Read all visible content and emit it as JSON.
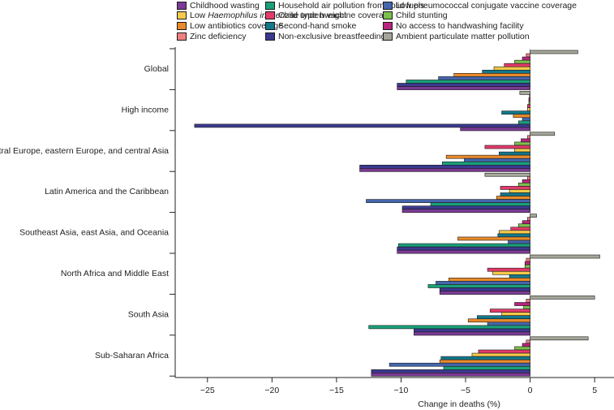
{
  "chart_data": {
    "type": "bar",
    "orientation": "horizontal",
    "title": "",
    "xlabel": "Change in deaths (%)",
    "ylabel": "",
    "xlim": [
      -27.5,
      6.5
    ],
    "xticks": [
      -25,
      -20,
      -15,
      -10,
      -5,
      0,
      5
    ],
    "xtick_labels": [
      "−25",
      "−20",
      "−15",
      "−10",
      "−5",
      "0",
      "5"
    ],
    "legend_position": "top",
    "categories": [
      "Global",
      "High income",
      "Central Europe, eastern Europe, and central Asia",
      "Latin America and the Caribbean",
      "Southeast Asia, east Asia, and Oceania",
      "North Africa and Middle East",
      "South Asia",
      "Sub-Saharan Africa"
    ],
    "series": [
      {
        "name": "Ambient particulate matter pollution",
        "color": "#a5a59a",
        "values": [
          3.7,
          -0.8,
          1.9,
          -3.5,
          0.5,
          5.4,
          5.0,
          4.5
        ]
      },
      {
        "name": "Zinc deficiency",
        "color": "#ee8080",
        "values": [
          -0.3,
          -0.05,
          -0.2,
          -0.2,
          -0.2,
          -0.3,
          -0.3,
          -0.3
        ]
      },
      {
        "name": "No access to handwashing facility",
        "color": "#b8257c",
        "values": [
          -0.6,
          -0.1,
          -0.7,
          -0.6,
          -0.6,
          -0.4,
          -1.2,
          -0.6
        ]
      },
      {
        "name": "Child stunting",
        "color": "#7bbf4d",
        "values": [
          -1.2,
          -0.1,
          -1.2,
          -0.9,
          -0.9,
          -0.4,
          -0.5,
          -1.2
        ]
      },
      {
        "name": "Child underweight",
        "color": "#e23b6b",
        "values": [
          -2.0,
          -0.2,
          -3.5,
          -2.3,
          -1.5,
          -3.3,
          -3.1,
          -4.0
        ]
      },
      {
        "name": "Low Haemophilus influenzae type b vaccine coverage",
        "color": "#f6c94a",
        "values": [
          -2.8,
          -0.2,
          -1.2,
          -1.6,
          -2.4,
          -2.9,
          -2.2,
          -4.5
        ]
      },
      {
        "name": "Second-hand smoke",
        "color": "#13788c",
        "values": [
          -3.7,
          -2.2,
          -2.4,
          -2.3,
          -2.5,
          -1.6,
          -4.1,
          -6.9
        ]
      },
      {
        "name": "Low antibiotics coverage",
        "color": "#e88a2b",
        "values": [
          -5.9,
          -1.3,
          -6.5,
          -2.6,
          -5.6,
          -6.3,
          -4.8,
          -7.0
        ]
      },
      {
        "name": "Low pneumococcal conjugate vaccine coverage",
        "color": "#4566ad",
        "values": [
          -7.1,
          -0.6,
          -5.1,
          -12.7,
          -1.7,
          -7.3,
          -3.3,
          -10.9
        ]
      },
      {
        "name": "Household air pollution from solid fuels",
        "color": "#1aa07a",
        "values": [
          -9.6,
          -0.9,
          -6.8,
          -7.7,
          -10.2,
          -7.9,
          -12.5,
          -6.7
        ]
      },
      {
        "name": "Non-exclusive breastfeeding",
        "color": "#3b3a8f",
        "values": [
          -10.3,
          -26.0,
          -13.2,
          -9.9,
          -10.3,
          -7.0,
          -9.0,
          -12.3
        ]
      },
      {
        "name": "Childhood wasting",
        "color": "#7b3a94",
        "values": [
          -10.3,
          -5.4,
          -13.2,
          -9.9,
          -10.3,
          -7.0,
          -9.0,
          -12.3
        ]
      }
    ],
    "legend_order": [
      "Childhood wasting",
      "Household air pollution from solid fuels",
      "Low pneumococcal conjugate vaccine coverage",
      "Low Haemophilus influenzae type b vaccine coverage",
      "Child underweight",
      "Child stunting",
      "Low antibiotics coverage",
      "Second-hand smoke",
      "No access to handwashing facility",
      "Zinc deficiency",
      "Non-exclusive breastfeeding",
      "Ambient particulate matter pollution"
    ]
  }
}
